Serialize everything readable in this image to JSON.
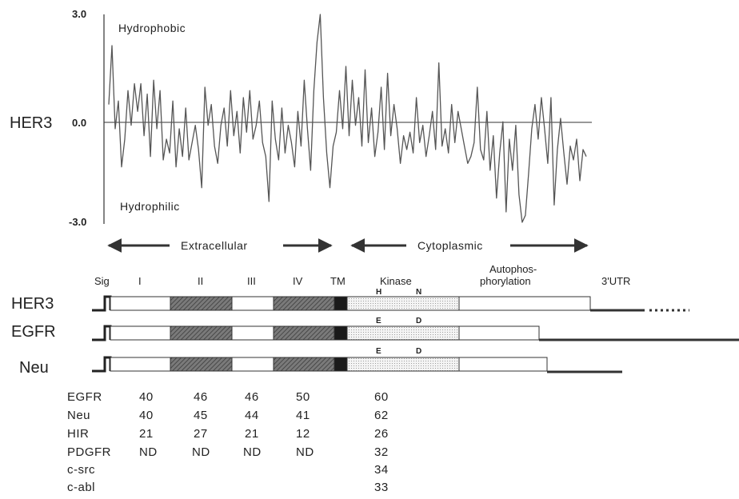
{
  "hydropathy": {
    "protein": "HER3",
    "y_ticks": [
      "3.0",
      "0.0",
      "-3.0"
    ],
    "upper_label": "Hydrophobic",
    "lower_label": "Hydrophilic",
    "ylim": [
      -3.0,
      3.0
    ],
    "profile": [
      0.4,
      2.1,
      -0.3,
      0.5,
      -1.4,
      -0.6,
      0.8,
      -0.2,
      1.0,
      0.2,
      1.0,
      -0.5,
      0.7,
      -1.1,
      1.1,
      -0.3,
      0.8,
      -1.2,
      -0.6,
      -1.0,
      0.5,
      -1.4,
      -0.3,
      -1.1,
      0.3,
      -1.2,
      -0.7,
      -0.2,
      -0.9,
      -2.0,
      0.9,
      -0.2,
      0.4,
      -0.8,
      -1.3,
      -0.2,
      0.3,
      -0.8,
      0.8,
      -0.5,
      0.2,
      -1.0,
      0.6,
      -0.4,
      0.8,
      -0.6,
      -0.2,
      0.5,
      -0.7,
      -1.1,
      -2.4,
      0.5,
      -0.6,
      -1.2,
      0.3,
      -1.0,
      -0.2,
      -0.7,
      -1.4,
      0.2,
      -0.8,
      1.1,
      -0.3,
      -1.5,
      0.8,
      2.2,
      3.0,
      0.6,
      -1.0,
      -2.0,
      -0.8,
      -0.4,
      0.8,
      -0.3,
      1.5,
      -0.5,
      1.1,
      -0.2,
      0.6,
      -0.8,
      1.4,
      -0.7,
      0.3,
      -1.1,
      -0.4,
      0.9,
      -0.9,
      1.3,
      -0.5,
      0.4,
      -0.3,
      -1.3,
      -0.5,
      -0.9,
      -0.4,
      -1.0,
      0.6,
      -0.7,
      -0.2,
      -1.1,
      -0.5,
      0.2,
      -0.9,
      1.6,
      -0.8,
      -0.3,
      -1.0,
      0.4,
      -0.7,
      0.2,
      -0.3,
      -0.8,
      -1.3,
      -1.1,
      -0.7,
      0.9,
      -0.9,
      -1.2,
      0.2,
      -1.5,
      -0.5,
      -2.3,
      -1.0,
      -0.1,
      -2.7,
      -0.6,
      -1.5,
      -0.2,
      -2.2,
      -3.0,
      -2.8,
      -1.6,
      -0.3,
      0.4,
      -0.6,
      0.6,
      -0.3,
      -1.3,
      0.6,
      -2.5,
      -0.9,
      0.0,
      -1.0,
      -1.9,
      -0.8,
      -1.2,
      -0.6,
      -1.8,
      -0.9,
      -1.1
    ],
    "regions": [
      "Extracellular",
      "Cytoplasmic"
    ]
  },
  "domain_map": {
    "labels": [
      "Sig",
      "I",
      "II",
      "III",
      "IV",
      "TM",
      "Kinase",
      "Autophos-",
      "phorylation",
      "3'UTR"
    ],
    "receptors": [
      {
        "name": "HER3",
        "residue_left": "H",
        "residue_right": "N"
      },
      {
        "name": "EGFR",
        "residue_left": "E",
        "residue_right": "D"
      },
      {
        "name": "Neu",
        "residue_left": "E",
        "residue_right": "D"
      }
    ]
  },
  "homology_table": {
    "rows": [
      {
        "name": "EGFR",
        "values": [
          "40",
          "46",
          "46",
          "50",
          "60"
        ]
      },
      {
        "name": "Neu",
        "values": [
          "40",
          "45",
          "44",
          "41",
          "62"
        ]
      },
      {
        "name": "HIR",
        "values": [
          "21",
          "27",
          "21",
          "12",
          "26"
        ]
      },
      {
        "name": "PDGFR",
        "values": [
          "ND",
          "ND",
          "ND",
          "ND",
          "32"
        ]
      },
      {
        "name": "c-src",
        "values": [
          "",
          "",
          "",
          "",
          "34"
        ]
      },
      {
        "name": "c-abl",
        "values": [
          "",
          "",
          "",
          "",
          "33"
        ]
      }
    ]
  }
}
